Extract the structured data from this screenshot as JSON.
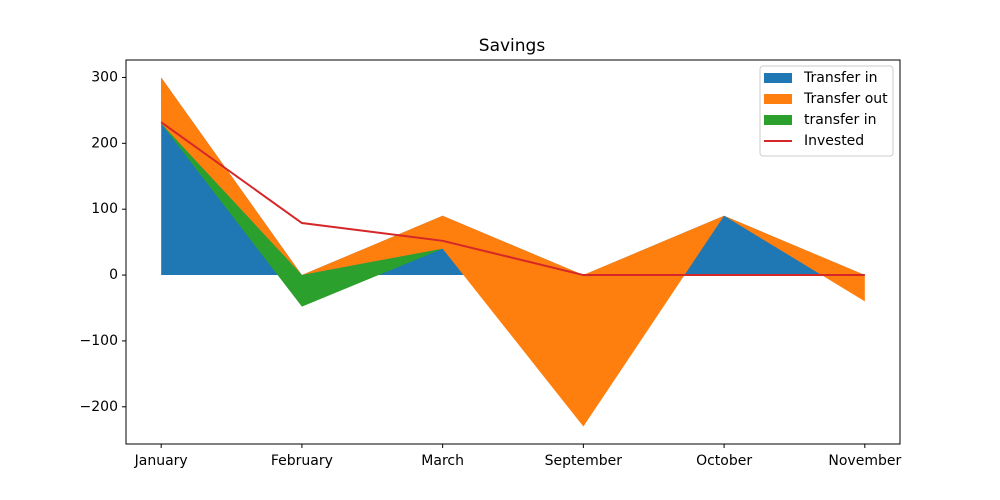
{
  "chart_data": {
    "type": "stackplot",
    "title": "Savings",
    "categories": [
      "January",
      "February",
      "March",
      "September",
      "October",
      "November"
    ],
    "series": [
      {
        "name": "Transfer in",
        "type": "area",
        "color": "#1f77b4",
        "values": [
          300,
          0,
          90,
          0,
          90,
          0
        ]
      },
      {
        "name": "Transfer out",
        "type": "area",
        "color": "#ff7f0e",
        "values": [
          -70,
          0,
          -50,
          -230,
          0,
          -40
        ]
      },
      {
        "name": "transfer in",
        "type": "area",
        "color": "#2ca02c",
        "values": [
          0,
          -48,
          0,
          0,
          0,
          0
        ]
      },
      {
        "name": "Invested",
        "type": "line",
        "color": "#d62728",
        "values": [
          232,
          79,
          52,
          0,
          0,
          0
        ]
      }
    ],
    "ylim": [
      -256.5,
      326.5
    ],
    "yticks": [
      {
        "value": -200,
        "label": "−200"
      },
      {
        "value": -100,
        "label": "−100"
      },
      0,
      100,
      200,
      300
    ],
    "legend": "upper right"
  }
}
